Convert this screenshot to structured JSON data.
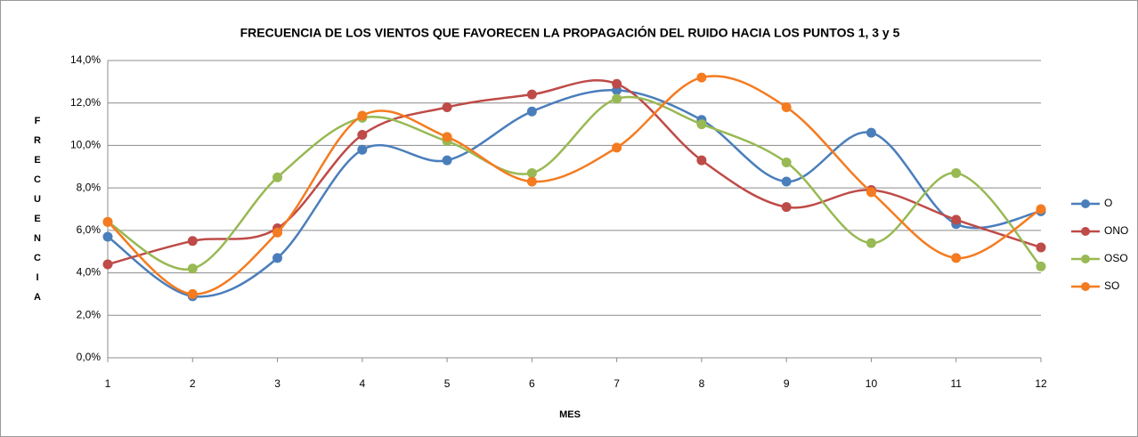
{
  "chart_data": {
    "type": "line",
    "title": "FRECUENCIA DE LOS VIENTOS QUE FAVORECEN LA PROPAGACIÓN DEL RUIDO HACIA LOS PUNTOS 1, 3 y 5",
    "x_label": "MES",
    "y_label": "FRECUENCIA",
    "x": [
      1,
      2,
      3,
      4,
      5,
      6,
      7,
      8,
      9,
      10,
      11,
      12
    ],
    "xlim": [
      1,
      12
    ],
    "xticks": [
      1,
      2,
      3,
      4,
      5,
      6,
      7,
      8,
      9,
      10,
      11,
      12
    ],
    "ylim": [
      0,
      14
    ],
    "yticks": [
      {
        "value": 0,
        "label": "0,0%"
      },
      {
        "value": 2,
        "label": "2,0%"
      },
      {
        "value": 4,
        "label": "4,0%"
      },
      {
        "value": 6,
        "label": "6,0%"
      },
      {
        "value": 8,
        "label": "8,0%"
      },
      {
        "value": 10,
        "label": "10,0%"
      },
      {
        "value": 12,
        "label": "12,0%"
      },
      {
        "value": 14,
        "label": "14,0%"
      }
    ],
    "grid": true,
    "smooth": true,
    "legend": "right",
    "series": [
      {
        "name": "O",
        "color": "#4a7ebb",
        "values": [
          5.7,
          2.9,
          4.7,
          9.8,
          9.3,
          11.6,
          12.6,
          11.2,
          8.3,
          10.6,
          6.3,
          6.9
        ]
      },
      {
        "name": "ONO",
        "color": "#be4b48",
        "values": [
          4.4,
          5.5,
          6.1,
          10.5,
          11.8,
          12.4,
          12.9,
          9.3,
          7.1,
          7.9,
          6.5,
          5.2
        ]
      },
      {
        "name": "OSO",
        "color": "#98b954",
        "values": [
          6.4,
          4.2,
          8.5,
          11.3,
          10.2,
          8.7,
          12.2,
          11.0,
          9.2,
          5.4,
          8.7,
          4.3
        ]
      },
      {
        "name": "SO",
        "color": "#f47b20",
        "values": [
          6.4,
          3.0,
          5.9,
          11.4,
          10.4,
          8.3,
          9.9,
          13.2,
          11.8,
          7.8,
          4.7,
          7.0
        ]
      }
    ]
  }
}
